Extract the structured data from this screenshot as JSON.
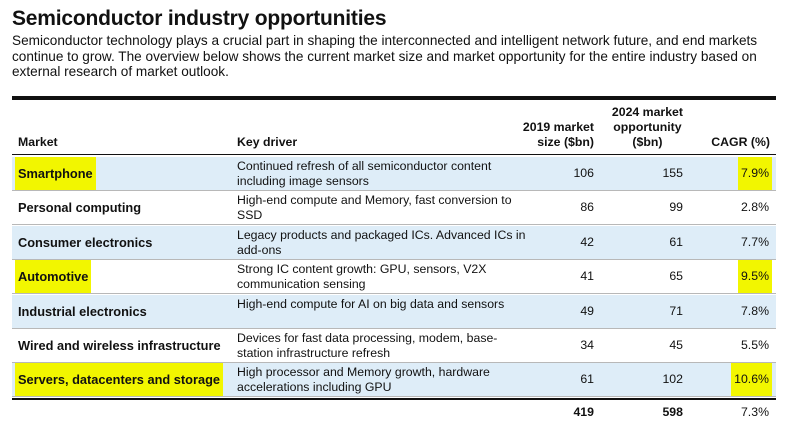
{
  "title": "Semiconductor industry opportunities",
  "subtitle": "Semiconductor technology plays a crucial part in shaping the interconnected and intelligent network future, and end markets continue to grow. The overview below shows the current market size and market opportunity for the entire industry based on external research of market outlook.",
  "columns": {
    "market": "Market",
    "driver": "Key driver",
    "size2019_l1": "2019 market",
    "size2019_l2": "size ($bn)",
    "opp2024_l1": "2024 market",
    "opp2024_l2": "opportunity",
    "opp2024_l3": "($bn)",
    "cagr": "CAGR (%)"
  },
  "rows": [
    {
      "market": "Smartphone",
      "driver": "Continued refresh of all semiconductor content including image sensors",
      "size2019": "106",
      "opp2024": "155",
      "cagr": "7.9%",
      "highlight": true
    },
    {
      "market": "Personal computing",
      "driver": "High-end compute and Memory, fast conversion to SSD",
      "size2019": "86",
      "opp2024": "99",
      "cagr": "2.8%",
      "highlight": false
    },
    {
      "market": "Consumer electronics",
      "driver": "Legacy products and packaged ICs. Advanced ICs in add-ons",
      "size2019": "42",
      "opp2024": "61",
      "cagr": "7.7%",
      "highlight": false
    },
    {
      "market": "Automotive",
      "driver": "Strong IC content growth: GPU, sensors, V2X communication sensing",
      "size2019": "41",
      "opp2024": "65",
      "cagr": "9.5%",
      "highlight": true
    },
    {
      "market": "Industrial electronics",
      "driver": "High-end compute for AI on big data and sensors",
      "size2019": "49",
      "opp2024": "71",
      "cagr": "7.8%",
      "highlight": false
    },
    {
      "market": "Wired and wireless infrastructure",
      "driver": "Devices for fast data processing, modem, base-station infrastructure refresh",
      "size2019": "34",
      "opp2024": "45",
      "cagr": "5.5%",
      "highlight": false
    },
    {
      "market": "Servers, datacenters and storage",
      "driver": "High processor and Memory growth, hardware accelerations including GPU",
      "size2019": "61",
      "opp2024": "102",
      "cagr": "10.6%",
      "highlight": true
    }
  ],
  "total": {
    "size2019": "419",
    "opp2024": "598",
    "cagr": "7.3%"
  },
  "colors": {
    "highlight": "#f2f600",
    "row_shade": "#deedf8",
    "rule": "#111111"
  }
}
